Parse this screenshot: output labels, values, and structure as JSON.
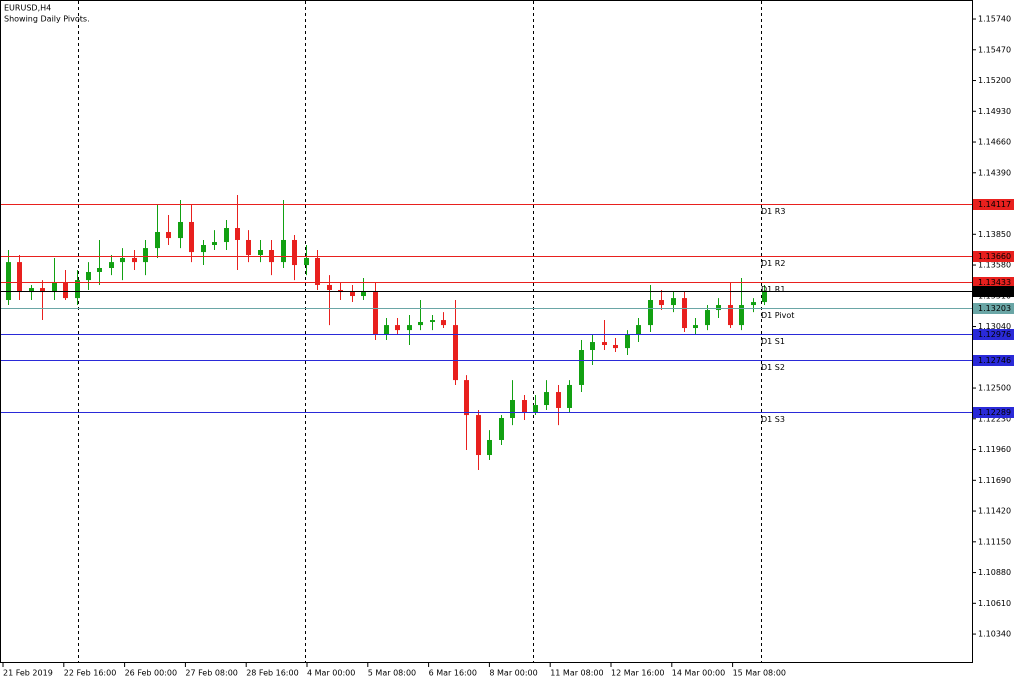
{
  "chart_data": {
    "type": "candlestick",
    "title": "EURUSD,H4",
    "subtitle": "Showing Daily Pivots.",
    "bull_color": "#12a012",
    "bear_color": "#e8201e",
    "ylim": [
      1.10086,
      1.15907
    ],
    "yticks": [
      {
        "value": 1.1574,
        "label": "1.15740"
      },
      {
        "value": 1.1547,
        "label": "1.15470"
      },
      {
        "value": 1.152,
        "label": "1.15200"
      },
      {
        "value": 1.1493,
        "label": "1.14930"
      },
      {
        "value": 1.1466,
        "label": "1.14660"
      },
      {
        "value": 1.1439,
        "label": "1.14390"
      },
      {
        "value": 1.1385,
        "label": "1.13850"
      },
      {
        "value": 1.1358,
        "label": "1.13580"
      },
      {
        "value": 1.1331,
        "label": "1.13310"
      },
      {
        "value": 1.1304,
        "label": "1.13040"
      },
      {
        "value": 1.125,
        "label": "1.12500"
      },
      {
        "value": 1.1223,
        "label": "1.12230"
      },
      {
        "value": 1.1196,
        "label": "1.11960"
      },
      {
        "value": 1.1169,
        "label": "1.11690"
      },
      {
        "value": 1.1142,
        "label": "1.11420"
      },
      {
        "value": 1.1115,
        "label": "1.11150"
      },
      {
        "value": 1.1088,
        "label": "1.10880"
      },
      {
        "value": 1.1061,
        "label": "1.10610"
      },
      {
        "value": 1.1034,
        "label": "1.10340"
      }
    ],
    "x_labels": [
      "21 Feb 2019",
      "22 Feb 16:00",
      "26 Feb 00:00",
      "27 Feb 08:00",
      "28 Feb 16:00",
      "4 Mar 00:00",
      "5 Mar 08:00",
      "6 Mar 16:00",
      "8 Mar 00:00",
      "11 Mar 08:00",
      "12 Mar 16:00",
      "14 Mar 00:00",
      "15 Mar 08:00"
    ],
    "levels": [
      {
        "name": "D1 R3",
        "value": 1.14117,
        "label": "1.14117",
        "color": "#e8201e"
      },
      {
        "name": "D1 R2",
        "value": 1.1366,
        "label": "1.13660",
        "color": "#e8201e"
      },
      {
        "name": "D1 R1",
        "value": 1.13433,
        "label": "1.13433",
        "color": "#e8201e"
      },
      {
        "name": "D1 Pivot",
        "value": 1.13203,
        "label": "1.13203",
        "color": "#6aa6a6"
      },
      {
        "name": "D1 S1",
        "value": 1.12976,
        "label": "1.12976",
        "color": "#2a2ad8"
      },
      {
        "name": "D1 S2",
        "value": 1.12746,
        "label": "1.12746",
        "color": "#2a2ad8"
      },
      {
        "name": "D1 S3",
        "value": 1.12289,
        "label": "1.12289",
        "color": "#2a2ad8"
      }
    ],
    "current_price": 1.13354,
    "candles": [
      [
        1.13273,
        1.13712,
        1.13229,
        1.13606
      ],
      [
        1.13606,
        1.13668,
        1.13273,
        1.13343
      ],
      [
        1.13343,
        1.13405,
        1.13273,
        1.13378
      ],
      [
        1.13378,
        1.13448,
        1.13097,
        1.13343
      ],
      [
        1.13343,
        1.13642,
        1.13273,
        1.13431
      ],
      [
        1.13431,
        1.13536,
        1.13273,
        1.1329
      ],
      [
        1.1329,
        1.13536,
        1.13229,
        1.13448
      ],
      [
        1.13448,
        1.13606,
        1.13361,
        1.13519
      ],
      [
        1.13519,
        1.138,
        1.13405,
        1.13554
      ],
      [
        1.13554,
        1.13668,
        1.13492,
        1.13606
      ],
      [
        1.13606,
        1.13729,
        1.13448,
        1.13642
      ],
      [
        1.13642,
        1.13712,
        1.13536,
        1.13606
      ],
      [
        1.13606,
        1.138,
        1.13492,
        1.13729
      ],
      [
        1.13729,
        1.14107,
        1.13642,
        1.1387
      ],
      [
        1.1387,
        1.14019,
        1.13756,
        1.13817
      ],
      [
        1.13817,
        1.14151,
        1.13729,
        1.13958
      ],
      [
        1.13958,
        1.14107,
        1.13606,
        1.13694
      ],
      [
        1.13694,
        1.138,
        1.1358,
        1.13756
      ],
      [
        1.13756,
        1.13887,
        1.13712,
        1.13782
      ],
      [
        1.13782,
        1.13975,
        1.13712,
        1.13905
      ],
      [
        1.13905,
        1.14195,
        1.13536,
        1.138
      ],
      [
        1.138,
        1.13887,
        1.13606,
        1.13668
      ],
      [
        1.13668,
        1.138,
        1.13606,
        1.13712
      ],
      [
        1.13712,
        1.138,
        1.13492,
        1.13606
      ],
      [
        1.13606,
        1.14151,
        1.13554,
        1.138
      ],
      [
        1.138,
        1.13844,
        1.13448,
        1.1358
      ],
      [
        1.1358,
        1.13756,
        1.13492,
        1.13642
      ],
      [
        1.13642,
        1.13712,
        1.13361,
        1.13405
      ],
      [
        1.13405,
        1.13492,
        1.13053,
        1.13361
      ],
      [
        1.13361,
        1.13431,
        1.13273,
        1.13343
      ],
      [
        1.13343,
        1.13405,
        1.13255,
        1.13308
      ],
      [
        1.13308,
        1.13466,
        1.13273,
        1.13343
      ],
      [
        1.13343,
        1.13431,
        1.12922,
        1.12966
      ],
      [
        1.12966,
        1.13115,
        1.12922,
        1.13053
      ],
      [
        1.13053,
        1.13115,
        1.12966,
        1.13009
      ],
      [
        1.13009,
        1.13141,
        1.12878,
        1.13053
      ],
      [
        1.13053,
        1.13273,
        1.13009,
        1.1308
      ],
      [
        1.1308,
        1.13141,
        1.13009,
        1.13097
      ],
      [
        1.13097,
        1.13167,
        1.13027,
        1.13053
      ],
      [
        1.13053,
        1.13273,
        1.12527,
        1.1257
      ],
      [
        1.1257,
        1.12614,
        1.11956,
        1.12263
      ],
      [
        1.12263,
        1.12307,
        1.1178,
        1.11912
      ],
      [
        1.11912,
        1.12131,
        1.11868,
        1.12044
      ],
      [
        1.12044,
        1.12263,
        1.12,
        1.12237
      ],
      [
        1.12237,
        1.1257,
        1.12175,
        1.12395
      ],
      [
        1.12395,
        1.12439,
        1.12219,
        1.12289
      ],
      [
        1.12289,
        1.12439,
        1.12263,
        1.12351
      ],
      [
        1.12351,
        1.1257,
        1.12307,
        1.12465
      ],
      [
        1.12465,
        1.12527,
        1.12175,
        1.12325
      ],
      [
        1.12325,
        1.1257,
        1.12289,
        1.12527
      ],
      [
        1.12527,
        1.12922,
        1.12465,
        1.12834
      ],
      [
        1.12834,
        1.12966,
        1.12702,
        1.12904
      ],
      [
        1.12904,
        1.13097,
        1.12834,
        1.12878
      ],
      [
        1.12878,
        1.12939,
        1.12816,
        1.12851
      ],
      [
        1.12851,
        1.13009,
        1.1279,
        1.12966
      ],
      [
        1.12966,
        1.13115,
        1.12904,
        1.13053
      ],
      [
        1.13053,
        1.13405,
        1.12992,
        1.13273
      ],
      [
        1.13273,
        1.13361,
        1.13185,
        1.13229
      ],
      [
        1.13229,
        1.13343,
        1.13167,
        1.1329
      ],
      [
        1.1329,
        1.13343,
        1.12992,
        1.13027
      ],
      [
        1.13027,
        1.13115,
        1.12966,
        1.13053
      ],
      [
        1.13053,
        1.13229,
        1.13009,
        1.13185
      ],
      [
        1.13185,
        1.1329,
        1.13115,
        1.13229
      ],
      [
        1.13229,
        1.13431,
        1.13027,
        1.13053
      ],
      [
        1.13053,
        1.13466,
        1.13009,
        1.13229
      ],
      [
        1.13229,
        1.1329,
        1.13167,
        1.13255
      ],
      [
        1.13255,
        1.13405,
        1.13229,
        1.13354
      ]
    ]
  }
}
